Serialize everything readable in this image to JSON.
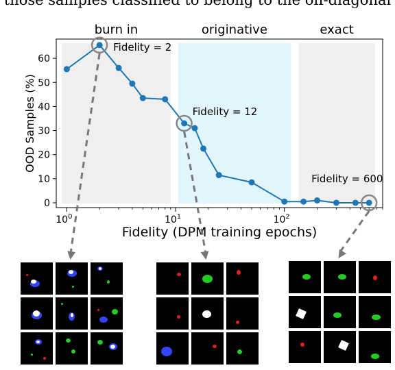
{
  "caption_fragment": "those samples classified to belong to the off-diagonal",
  "phases": [
    {
      "label": "burn in",
      "from": 0.9,
      "to": 9,
      "color": "#efefef"
    },
    {
      "label": "originative",
      "from": 10.5,
      "to": 115,
      "color": "#e2f5fc"
    },
    {
      "label": "exact",
      "from": 135,
      "to": 680,
      "color": "#efefef"
    }
  ],
  "chart_data": {
    "type": "line",
    "x_scale": "log",
    "xlabel": "Fidelity (DPM training epochs)",
    "ylabel": "OOD Samples (%)",
    "xlim": [
      0.8,
      800
    ],
    "ylim": [
      -2,
      68
    ],
    "x_tick_labels": [
      "10^0",
      "10^1",
      "10^2"
    ],
    "x_ticks": [
      1,
      10,
      100
    ],
    "y_ticks": [
      0,
      10,
      20,
      30,
      40,
      50,
      60
    ],
    "series": [
      {
        "color": "#1f77b4",
        "x": [
          1,
          2,
          3,
          4,
          5,
          8,
          12,
          15,
          18,
          25,
          50,
          100,
          150,
          200,
          300,
          450,
          600
        ],
        "y": [
          55.5,
          65.5,
          56,
          49.5,
          43.5,
          43,
          33,
          31,
          22.5,
          11.5,
          8.5,
          0.5,
          0.5,
          1,
          0,
          0,
          0
        ]
      }
    ],
    "annotations": [
      {
        "text": "Fidelity = 2",
        "x": 2,
        "y": 65.5
      },
      {
        "text": "Fidelity = 12",
        "x": 12,
        "y": 33
      },
      {
        "text": "Fidelity = 600",
        "x": 600,
        "y": 0
      }
    ]
  },
  "sample_grids": [
    {
      "fidelity": 2,
      "tiles": [
        [
          {
            "blobs": [
              {
                "c": "#3344ff",
                "w": 14,
                "h": 10,
                "x": 45,
                "y": 65
              },
              {
                "c": "#ffffff",
                "w": 8,
                "h": 6,
                "x": 40,
                "y": 60
              },
              {
                "c": "#e02020",
                "w": 3,
                "h": 3,
                "x": 20,
                "y": 40
              }
            ]
          },
          {
            "blobs": [
              {
                "c": "#3344ff",
                "w": 14,
                "h": 10,
                "x": 50,
                "y": 35
              },
              {
                "c": "#ffffff",
                "w": 7,
                "h": 6,
                "x": 48,
                "y": 30
              },
              {
                "c": "#22cc22",
                "w": 3,
                "h": 3,
                "x": 55,
                "y": 75
              }
            ]
          },
          {
            "blobs": [
              {
                "c": "#3344ff",
                "w": 8,
                "h": 6,
                "x": 30,
                "y": 20
              },
              {
                "c": "#ffffff",
                "w": 4,
                "h": 4,
                "x": 30,
                "y": 20
              },
              {
                "c": "#22cc22",
                "w": 4,
                "h": 5,
                "x": 55,
                "y": 60
              }
            ]
          }
        ],
        [
          {
            "blobs": [
              {
                "c": "#3344ff",
                "w": 15,
                "h": 12,
                "x": 50,
                "y": 55
              },
              {
                "c": "#ffffff",
                "w": 10,
                "h": 9,
                "x": 48,
                "y": 50
              }
            ]
          },
          {
            "blobs": [
              {
                "c": "#3344ff",
                "w": 9,
                "h": 12,
                "x": 50,
                "y": 60
              },
              {
                "c": "#ffffff",
                "w": 4,
                "h": 6,
                "x": 50,
                "y": 55
              },
              {
                "c": "#22cc22",
                "w": 3,
                "h": 3,
                "x": 20,
                "y": 20
              }
            ]
          },
          {
            "blobs": [
              {
                "c": "#3344ff",
                "w": 12,
                "h": 9,
                "x": 40,
                "y": 70
              },
              {
                "c": "#22cc22",
                "w": 9,
                "h": 8,
                "x": 75,
                "y": 45
              },
              {
                "c": "#e02020",
                "w": 3,
                "h": 3,
                "x": 25,
                "y": 40
              }
            ]
          }
        ],
        [
          {
            "blobs": [
              {
                "c": "#3344ff",
                "w": 10,
                "h": 8,
                "x": 55,
                "y": 30
              },
              {
                "c": "#ffffff",
                "w": 5,
                "h": 4,
                "x": 55,
                "y": 30
              },
              {
                "c": "#22cc22",
                "w": 3,
                "h": 3,
                "x": 35,
                "y": 70
              },
              {
                "c": "#e02020",
                "w": 4,
                "h": 4,
                "x": 75,
                "y": 80
              }
            ]
          },
          {
            "blobs": [
              {
                "c": "#22cc22",
                "w": 7,
                "h": 6,
                "x": 40,
                "y": 25
              },
              {
                "c": "#22cc22",
                "w": 6,
                "h": 6,
                "x": 55,
                "y": 60
              }
            ]
          },
          {
            "blobs": [
              {
                "c": "#3344ff",
                "w": 12,
                "h": 10,
                "x": 70,
                "y": 45
              },
              {
                "c": "#ffffff",
                "w": 7,
                "h": 6,
                "x": 70,
                "y": 45
              },
              {
                "c": "#22cc22",
                "w": 8,
                "h": 7,
                "x": 30,
                "y": 30
              }
            ]
          }
        ]
      ]
    },
    {
      "fidelity": 12,
      "tiles": [
        [
          {
            "blobs": [
              {
                "c": "#e02020",
                "w": 6,
                "h": 5,
                "x": 70,
                "y": 38
              }
            ]
          },
          {
            "blobs": [
              {
                "c": "#22cc22",
                "w": 15,
                "h": 12,
                "x": 50,
                "y": 50
              }
            ]
          },
          {
            "blobs": [
              {
                "c": "#e02020",
                "w": 6,
                "h": 7,
                "x": 38,
                "y": 30
              }
            ]
          }
        ],
        [
          {
            "blobs": [
              {
                "c": "#e02020",
                "w": 5,
                "h": 5,
                "x": 70,
                "y": 60
              }
            ]
          },
          {
            "blobs": [
              {
                "c": "#ffffff",
                "w": 13,
                "h": 11,
                "x": 48,
                "y": 52
              }
            ]
          },
          {
            "blobs": [
              {
                "c": "#e02020",
                "w": 5,
                "h": 5,
                "x": 35,
                "y": 78
              }
            ]
          }
        ],
        [
          {
            "blobs": [
              {
                "c": "#3344ff",
                "w": 16,
                "h": 14,
                "x": 32,
                "y": 60
              }
            ]
          },
          {
            "blobs": [
              {
                "c": "#e02020",
                "w": 6,
                "h": 5,
                "x": 73,
                "y": 43
              }
            ]
          },
          {
            "blobs": [
              {
                "c": "#22cc22",
                "w": 7,
                "h": 7,
                "x": 42,
                "y": 60
              }
            ]
          }
        ]
      ]
    },
    {
      "fidelity": 600,
      "tiles": [
        [
          {
            "blobs": [
              {
                "c": "#22cc22",
                "w": 12,
                "h": 8,
                "x": 55,
                "y": 48
              }
            ]
          },
          {
            "blobs": [
              {
                "c": "#22cc22",
                "w": 12,
                "h": 8,
                "x": 58,
                "y": 48
              }
            ]
          },
          {
            "blobs": [
              {
                "c": "#e02020",
                "w": 6,
                "h": 7,
                "x": 52,
                "y": 52
              }
            ]
          }
        ],
        [
          {
            "blobs": [
              {
                "c": "#ffffff",
                "w": 12,
                "h": 12,
                "x": 38,
                "y": 55,
                "sq": true
              }
            ]
          },
          {
            "blobs": [
              {
                "c": "#22cc22",
                "w": 12,
                "h": 8,
                "x": 42,
                "y": 60
              }
            ]
          },
          {
            "blobs": [
              {
                "c": "#22cc22",
                "w": 13,
                "h": 8,
                "x": 55,
                "y": 65
              }
            ]
          }
        ],
        [
          {
            "blobs": [
              {
                "c": "#e02020",
                "w": 6,
                "h": 6,
                "x": 42,
                "y": 42
              }
            ]
          },
          {
            "blobs": [
              {
                "c": "#ffffff",
                "w": 12,
                "h": 12,
                "x": 62,
                "y": 45,
                "sq": true
              }
            ]
          },
          {
            "blobs": [
              {
                "c": "#22cc22",
                "w": 12,
                "h": 8,
                "x": 50,
                "y": 78
              }
            ]
          }
        ]
      ]
    }
  ]
}
